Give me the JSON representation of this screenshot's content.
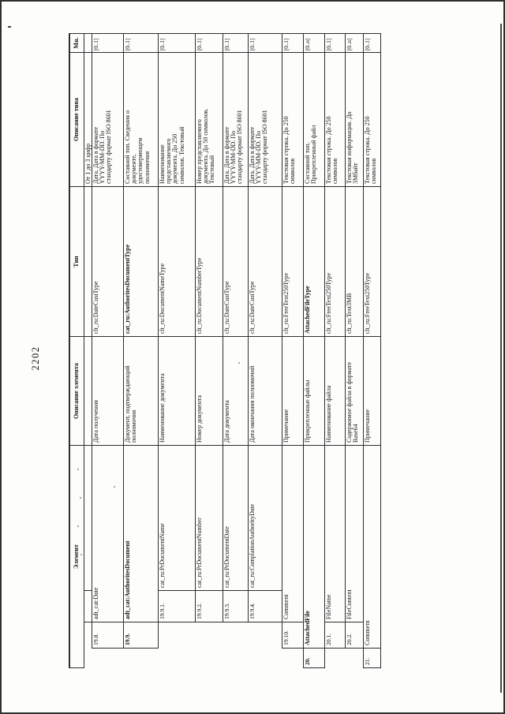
{
  "page": {
    "number": "2202"
  },
  "colors": {
    "paper": "#fdfdfc",
    "ink": "#161616",
    "line": "#2e2e2e"
  },
  "table": {
    "headers": {
      "element": "Элемент",
      "element_description": "Описание элемента",
      "type": "Тип",
      "type_description": "Описание типа",
      "multiplicity": "Мн."
    },
    "rows": [
      {
        "no": "",
        "name": "",
        "bold": false,
        "description": "",
        "type": "",
        "type_description": "От 1 до 3 цифр",
        "multiplicity": ""
      },
      {
        "no": "19.8.",
        "name": "adt_cat:Date",
        "bold": false,
        "description": "Дата получения",
        "type": "clt_ru:DateCustType",
        "type_description": "Дата. Дата в формате\nYYYY-MM-DD. По\nстандарту формат ISO 8601",
        "multiplicity": "[0..1]"
      },
      {
        "no": "19.9.",
        "name": "adt_cat:AuthoritesDocument",
        "bold": true,
        "description": "Документ, подтверждающий\nполномочия",
        "type": "cat_ru:AuthoritesDocumentType",
        "type_description": "Составной тип. Сведения о\nдокументе,\nудостоверяющем\nполномочия",
        "multiplicity": "[0..1]"
      },
      {
        "no": "19.9.1.",
        "name": "cat_ru:PrDocumentName",
        "bold": false,
        "description": "Наименование документа",
        "type": "clt_ru:DocumentNameType",
        "type_description": "Наименование\nпредставляемого\nдокумента. До 250\nсимволов. Текстовый",
        "multiplicity": "[0..1]"
      },
      {
        "no": "19.9.2.",
        "name": "cat_ru:PrDocumentNumber",
        "bold": false,
        "description": "Номер документа",
        "type": "clt_ru:DocumentNumberType",
        "type_description": "Номер представляемого\nдокумента. До 50 символов.\nТекстовый",
        "multiplicity": "[0..1]"
      },
      {
        "no": "19.9.3.",
        "name": "cat_ru:PrDocumentDate",
        "bold": false,
        "description": "Дата документа",
        "type": "clt_ru:DateCustType",
        "type_description": "Дата. Дата в формате\nYYYY-MM-DD. По\nстандарту формат ISO 8601",
        "multiplicity": "[0..1]"
      },
      {
        "no": "19.9.4.",
        "name": "cat_ru:ComplationAuthorityDate",
        "bold": false,
        "description": "Дата окончания полномочий",
        "type": "clt_ru:DateCustType",
        "type_description": "Дата. Дата в формате\nYYYY-MM-DD. По\nстандарту формат ISO 8601",
        "multiplicity": "[0..1]"
      },
      {
        "no": "19.10.",
        "name": "Comment",
        "bold": false,
        "description": "Примечание",
        "type": "clt_ru:FreeText250Type",
        "type_description": "Текстовая строка. До 250\nсимволов",
        "multiplicity": "[0..1]"
      },
      {
        "no": "20.",
        "name": "AttachedFile",
        "bold": true,
        "description": "Прикрепленные файлы",
        "type": "AttachedFileType",
        "type_description": "Составной тип.\nПрикрепленный файл",
        "multiplicity": "[0..n]"
      },
      {
        "no": "20.1.",
        "name": "FileName",
        "bold": false,
        "description": "Наименование файла",
        "type": "clt_ru:FreeText250Type",
        "type_description": "Текстовая строка. До 250\nсимволов",
        "multiplicity": "[0..1]"
      },
      {
        "no": "20.2.",
        "name": "FileContent",
        "bold": false,
        "description": "Содержимое файла в формате\nBase64",
        "type": "clt_ru:Text3MB",
        "type_description": "Текстовая информация. До\n3Мбайт",
        "multiplicity": "[0..n]"
      },
      {
        "no": "21.",
        "name": "Comment",
        "bold": false,
        "description": "Примечание",
        "type": "clt_ru:FreeText250Type",
        "type_description": "Текстовая строка. До 250\nсимволов",
        "multiplicity": "[0..1]"
      }
    ]
  }
}
